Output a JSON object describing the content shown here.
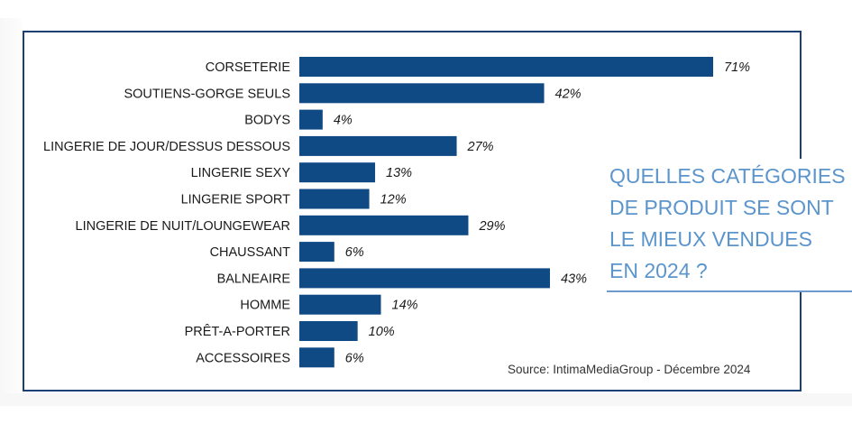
{
  "chart_data": {
    "type": "bar",
    "orientation": "horizontal",
    "title": "QUELLES CATÉGORIES\nDE PRODUIT SE SONT\nLE MIEUX VENDUES\nEN 2024 ?",
    "source": "Source: IntimaMediaGroup - Décembre 2024",
    "categories": [
      "CORSETERIE",
      "SOUTIENS-GORGE SEULS",
      "BODYS",
      "LINGERIE DE JOUR/DESSUS DESSOUS",
      "LINGERIE SEXY",
      "LINGERIE SPORT",
      "LINGERIE DE NUIT/LOUNGEWEAR",
      "CHAUSSANT",
      "BALNEAIRE",
      "HOMME",
      "PRÊT-A-PORTER",
      "ACCESSOIRES"
    ],
    "values": [
      71,
      42,
      4,
      27,
      13,
      12,
      29,
      6,
      43,
      14,
      10,
      6
    ],
    "value_labels": [
      "71%",
      "42%",
      "4%",
      "27%",
      "13%",
      "12%",
      "29%",
      "6%",
      "43%",
      "14%",
      "10%",
      "6%"
    ],
    "unit": "%",
    "xlim": [
      0,
      71
    ],
    "grid": false,
    "legend": "none",
    "bar_color": "#0f4a85"
  }
}
